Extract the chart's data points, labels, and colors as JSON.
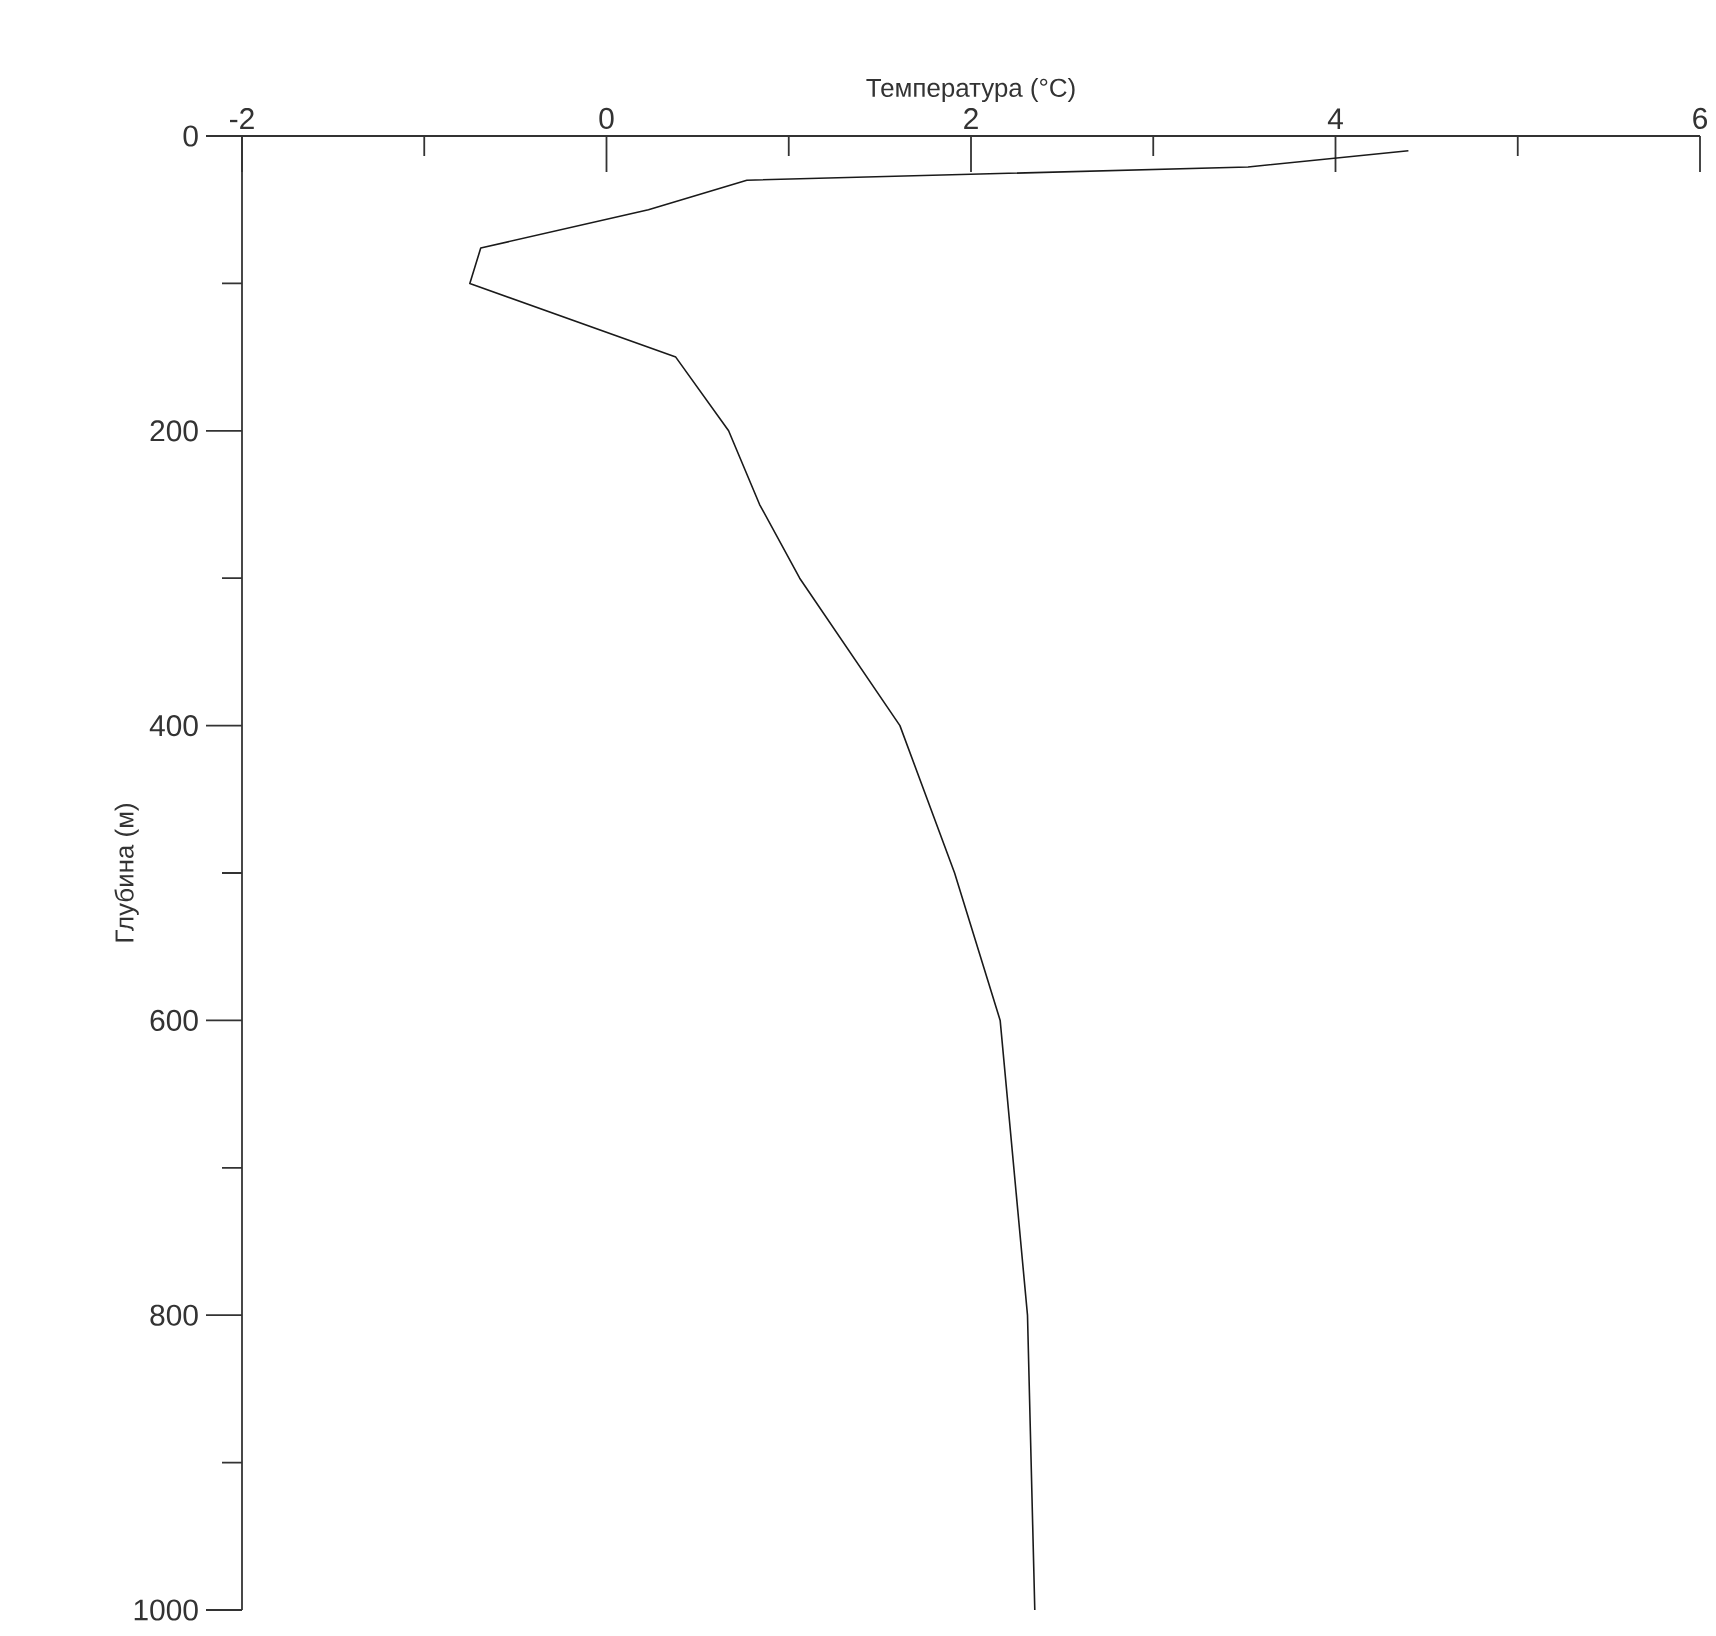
{
  "chart_data": {
    "type": "line",
    "xlabel": "Температура (°C)",
    "ylabel": "Глубина (м)",
    "color": "#1a1a1a",
    "x": [
      4.4,
      3.52,
      0.77,
      0.23,
      -0.69,
      -0.75,
      0.38,
      0.67,
      0.84,
      1.06,
      1.61,
      1.91,
      2.16,
      2.31,
      2.35
    ],
    "values": [
      10,
      21,
      30,
      50,
      76,
      100,
      150,
      200,
      250,
      300,
      400,
      500,
      600,
      800,
      1000
    ],
    "xlim": [
      -2,
      6
    ],
    "xticks": [
      -2,
      {
        "value": -1,
        "label": null
      },
      0,
      {
        "value": 1,
        "label": null
      },
      2,
      {
        "value": 3,
        "label": null
      },
      4,
      {
        "value": 5,
        "label": null
      },
      6
    ],
    "ylim": [
      1000,
      0
    ],
    "yticks": [
      0,
      {
        "value": 100,
        "label": null
      },
      200,
      {
        "value": 300,
        "label": null
      },
      400,
      {
        "value": 500,
        "label": null
      },
      600,
      {
        "value": 700,
        "label": null
      },
      800,
      {
        "value": 900,
        "label": null
      },
      1000
    ]
  }
}
